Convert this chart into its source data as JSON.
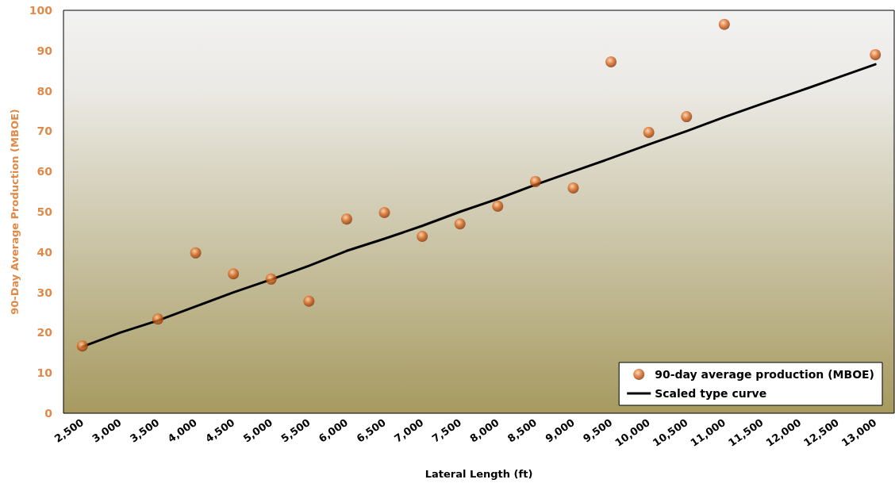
{
  "chart_data": {
    "type": "scatter",
    "xlabel": "Lateral Length (ft)",
    "ylabel": "90-Day Average Production (MBOE)",
    "categories": [
      "2,500",
      "3,000",
      "3,500",
      "4,000",
      "4,500",
      "5,000",
      "5,500",
      "6,000",
      "6,500",
      "7,000",
      "7,500",
      "8,000",
      "8,500",
      "9,000",
      "9,500",
      "10,000",
      "10,500",
      "11,000",
      "11,500",
      "12,000",
      "12,500",
      "13,000"
    ],
    "series": [
      {
        "name": "90-day average production (MBOE)",
        "color": "#d9661f",
        "marker": "circle",
        "values": [
          16.7,
          null,
          23.4,
          39.8,
          34.6,
          33.3,
          27.8,
          48.2,
          49.8,
          43.9,
          47.0,
          51.4,
          57.5,
          55.9,
          87.2,
          69.7,
          73.6,
          96.5,
          null,
          null,
          null,
          89.0
        ]
      },
      {
        "name": "Scaled type curve",
        "type": "line",
        "color": "#000000",
        "marker": "none",
        "line_style": "solid",
        "values": [
          16.5,
          20,
          23,
          26.5,
          30,
          33.2,
          36.6,
          40.3,
          43.3,
          46.5,
          50,
          53.2,
          56.7,
          60,
          63.3,
          66.7,
          70,
          73.5,
          76.8,
          80,
          83.3,
          86.6
        ]
      }
    ],
    "ylim": [
      0,
      100
    ],
    "yticks": [
      0,
      10,
      20,
      30,
      40,
      50,
      60,
      70,
      80,
      90,
      100
    ],
    "grid": false,
    "legend": "bottom right"
  }
}
